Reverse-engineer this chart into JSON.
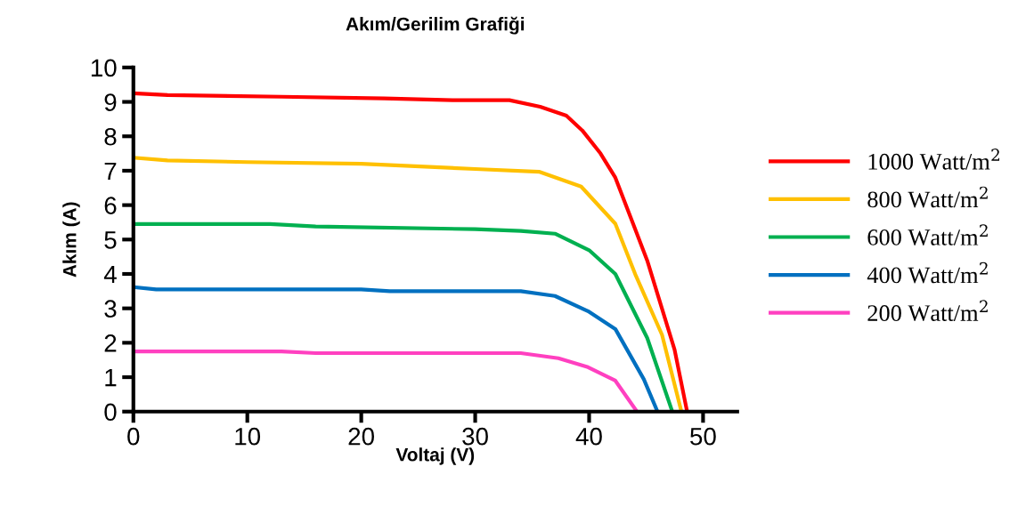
{
  "chart_data": {
    "type": "line",
    "title": "Akım/Gerilim Grafiği",
    "xlabel": "Voltaj (V)",
    "ylabel": "Akım (A)",
    "xlim": [
      0,
      53
    ],
    "xticks": [
      0,
      10,
      20,
      30,
      40,
      50
    ],
    "ylim": [
      0,
      10
    ],
    "yticks": [
      0,
      1,
      2,
      3,
      4,
      5,
      6,
      7,
      8,
      9,
      10
    ],
    "grid": false,
    "legend": "right",
    "marker": "none",
    "line_style": "solid",
    "series": [
      {
        "name": "1000 Watt/m$^{2}$",
        "color": "#ff0000",
        "x": [
          0,
          3,
          13,
          22,
          28,
          33,
          35.7,
          38,
          39.4,
          41,
          42.3,
          43,
          45.1,
          47.5,
          48.6
        ],
        "values": [
          9.25,
          9.2,
          9.15,
          9.1,
          9.05,
          9.05,
          8.86,
          8.6,
          8.17,
          7.5,
          6.8,
          6.2,
          4.39,
          1.8,
          0
        ]
      },
      {
        "name": "800 Watt/m$^{2}$",
        "color": "#ffc000",
        "x": [
          0,
          3,
          10,
          20,
          30,
          35.6,
          39.3,
          42.3,
          44.1,
          46.4,
          48.1
        ],
        "values": [
          7.38,
          7.3,
          7.25,
          7.2,
          7.05,
          6.97,
          6.54,
          5.46,
          3.95,
          2.23,
          0
        ]
      },
      {
        "name": "600 Watt/m$^{2}$",
        "color": "#00b050",
        "x": [
          0,
          12,
          16,
          30,
          34,
          37,
          40,
          42.3,
          45.1,
          47.3
        ],
        "values": [
          5.45,
          5.45,
          5.38,
          5.3,
          5.25,
          5.17,
          4.69,
          4.0,
          2.14,
          0
        ]
      },
      {
        "name": "400 Watt/m$^{2}$",
        "color": "#0070c0",
        "x": [
          0,
          2,
          20,
          22.5,
          34,
          37,
          39.9,
          42.3,
          44.8,
          46
        ],
        "values": [
          3.62,
          3.55,
          3.55,
          3.5,
          3.5,
          3.36,
          2.92,
          2.4,
          0.94,
          0
        ]
      },
      {
        "name": "200 Watt/m$^{2}$",
        "color": "#ff40c0",
        "x": [
          0,
          13,
          16,
          34,
          37.3,
          39.9,
          42.3,
          44.2
        ],
        "values": [
          1.75,
          1.75,
          1.7,
          1.7,
          1.55,
          1.29,
          0.9,
          0
        ]
      }
    ]
  }
}
